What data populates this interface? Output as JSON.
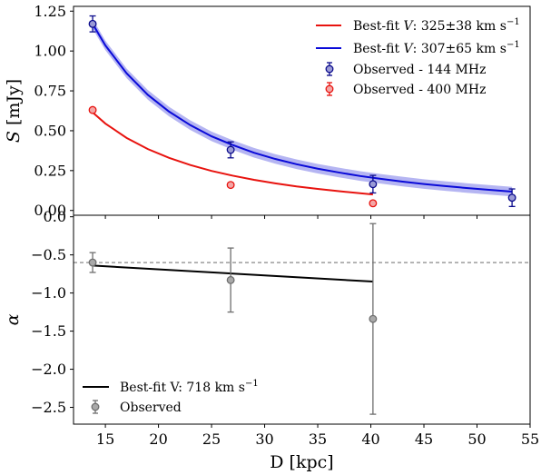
{
  "chart_data": [
    {
      "type": "line",
      "panel": "top",
      "ylabel_text": "S [mJy]",
      "ylim": [
        -0.03,
        1.28
      ],
      "yticks": [
        0.0,
        0.25,
        0.5,
        0.75,
        1.0,
        1.25
      ],
      "ytick_labels": [
        "0.00",
        "0.25",
        "0.50",
        "0.75",
        "1.00",
        "1.25"
      ],
      "xlim": [
        12,
        55
      ],
      "legend_position": "top-right",
      "series": [
        {
          "name": "Best-fit V: 325±38 km s⁻¹",
          "legend_prefix": "Best-fit ",
          "legend_var": "V",
          "legend_value": ": 325±38 km s",
          "legend_sup": "−1",
          "kind": "line",
          "color": "#e8130f",
          "x": [
            13.8,
            15,
            17,
            19,
            21,
            23,
            25,
            27,
            29,
            31,
            33,
            35,
            37,
            40.2
          ],
          "y": [
            0.615,
            0.545,
            0.455,
            0.385,
            0.33,
            0.285,
            0.248,
            0.218,
            0.192,
            0.17,
            0.151,
            0.135,
            0.121,
            0.1
          ]
        },
        {
          "name": "Best-fit V: 307±65 km s⁻¹",
          "legend_prefix": "Best-fit ",
          "legend_var": "V",
          "legend_value": ": 307±65 km s",
          "legend_sup": "−1",
          "kind": "line",
          "color": "#0a0ad8",
          "band_color": "#a8a8f0",
          "x": [
            13.8,
            15,
            17,
            19,
            21,
            23,
            25,
            27,
            29,
            31,
            33,
            35,
            37,
            39,
            41,
            43,
            45,
            47,
            49,
            51,
            53.3
          ],
          "y": [
            1.17,
            1.035,
            0.86,
            0.725,
            0.62,
            0.535,
            0.465,
            0.41,
            0.362,
            0.323,
            0.29,
            0.262,
            0.238,
            0.216,
            0.198,
            0.181,
            0.166,
            0.153,
            0.141,
            0.13,
            0.118
          ],
          "band_halfwidth": 0.03
        },
        {
          "name": "Observed - 144 MHz",
          "kind": "errorbar",
          "color": "#0a0a8c",
          "fill": "#9b9bd6",
          "x": [
            13.8,
            26.8,
            40.2,
            53.3
          ],
          "y": [
            1.17,
            0.38,
            0.165,
            0.08
          ],
          "yerr": [
            0.05,
            0.05,
            0.055,
            0.055
          ]
        },
        {
          "name": "Observed - 400 MHz",
          "kind": "errorbar",
          "color": "#e8130f",
          "fill": "#f3a6a6",
          "x": [
            13.8,
            26.8,
            40.2
          ],
          "y": [
            0.63,
            0.16,
            0.045
          ],
          "yerr": [
            0.012,
            0.012,
            0.008
          ]
        }
      ]
    },
    {
      "type": "line",
      "panel": "bottom",
      "ylabel_text": "α",
      "xlabel": "D [kpc]",
      "xlim": [
        12,
        55
      ],
      "ylim": [
        -2.72,
        0.02
      ],
      "xticks": [
        15,
        20,
        25,
        30,
        35,
        40,
        45,
        50,
        55
      ],
      "xtick_labels": [
        "15",
        "20",
        "25",
        "30",
        "35",
        "40",
        "45",
        "50",
        "55"
      ],
      "yticks": [
        0.0,
        -0.5,
        -1.0,
        -1.5,
        -2.0,
        -2.5
      ],
      "ytick_labels": [
        "0.0",
        "−0.5",
        "−1.0",
        "−1.5",
        "−2.0",
        "−2.5"
      ],
      "reference_line": -0.6,
      "legend_position": "bottom-left",
      "series": [
        {
          "name": "Best-fit V: 718 km s⁻¹",
          "legend_text": "Best-fit V: 718 km s",
          "legend_sup": "−1",
          "kind": "line",
          "color": "#000000",
          "x": [
            13.8,
            40.2
          ],
          "y": [
            -0.64,
            -0.85
          ]
        },
        {
          "name": "Observed",
          "kind": "errorbar",
          "color": "#6e6e6e",
          "fill": "#a9a9a9",
          "x": [
            13.8,
            26.8,
            40.2
          ],
          "y": [
            -0.6,
            -0.83,
            -1.34
          ],
          "yerr": [
            0.13,
            0.42,
            1.25
          ]
        }
      ]
    }
  ]
}
